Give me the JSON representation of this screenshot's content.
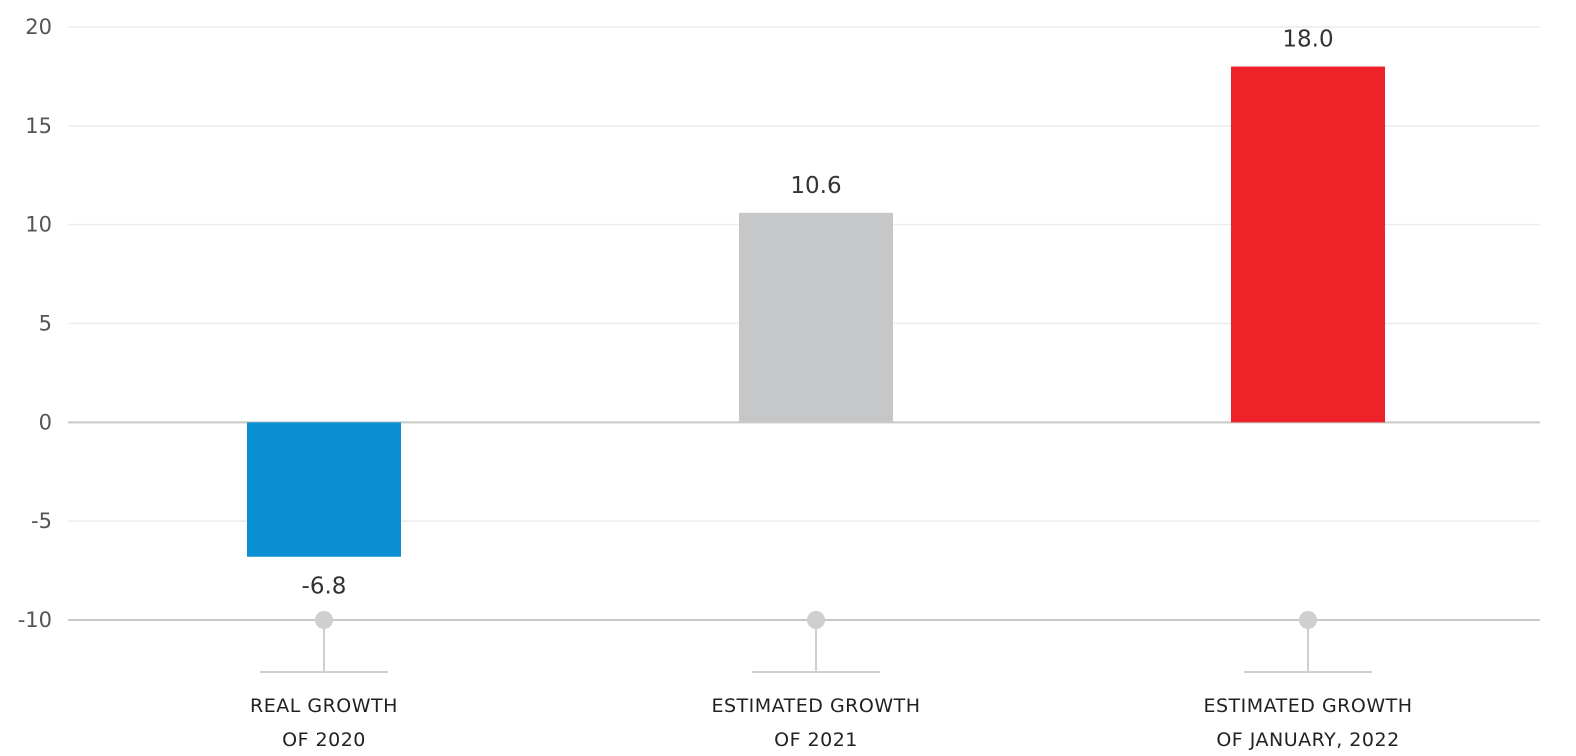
{
  "chart_data": {
    "type": "bar",
    "categories": [
      [
        "REAL GROWTH",
        "OF 2020"
      ],
      [
        "ESTIMATED GROWTH",
        "OF 2021"
      ],
      [
        "ESTIMATED GROWTH",
        "OF JANUARY, 2022"
      ]
    ],
    "values": [
      -6.8,
      10.6,
      18.0
    ],
    "value_labels": [
      "-6.8",
      "10.6",
      "18.0"
    ],
    "colors": [
      "#0a90d2",
      "#c6c7c9",
      "#ee2229"
    ],
    "ylim": [
      -10,
      20
    ],
    "yticks": [
      20,
      15,
      10,
      5,
      0,
      -5,
      -10
    ],
    "grid": true,
    "legend": "none"
  }
}
